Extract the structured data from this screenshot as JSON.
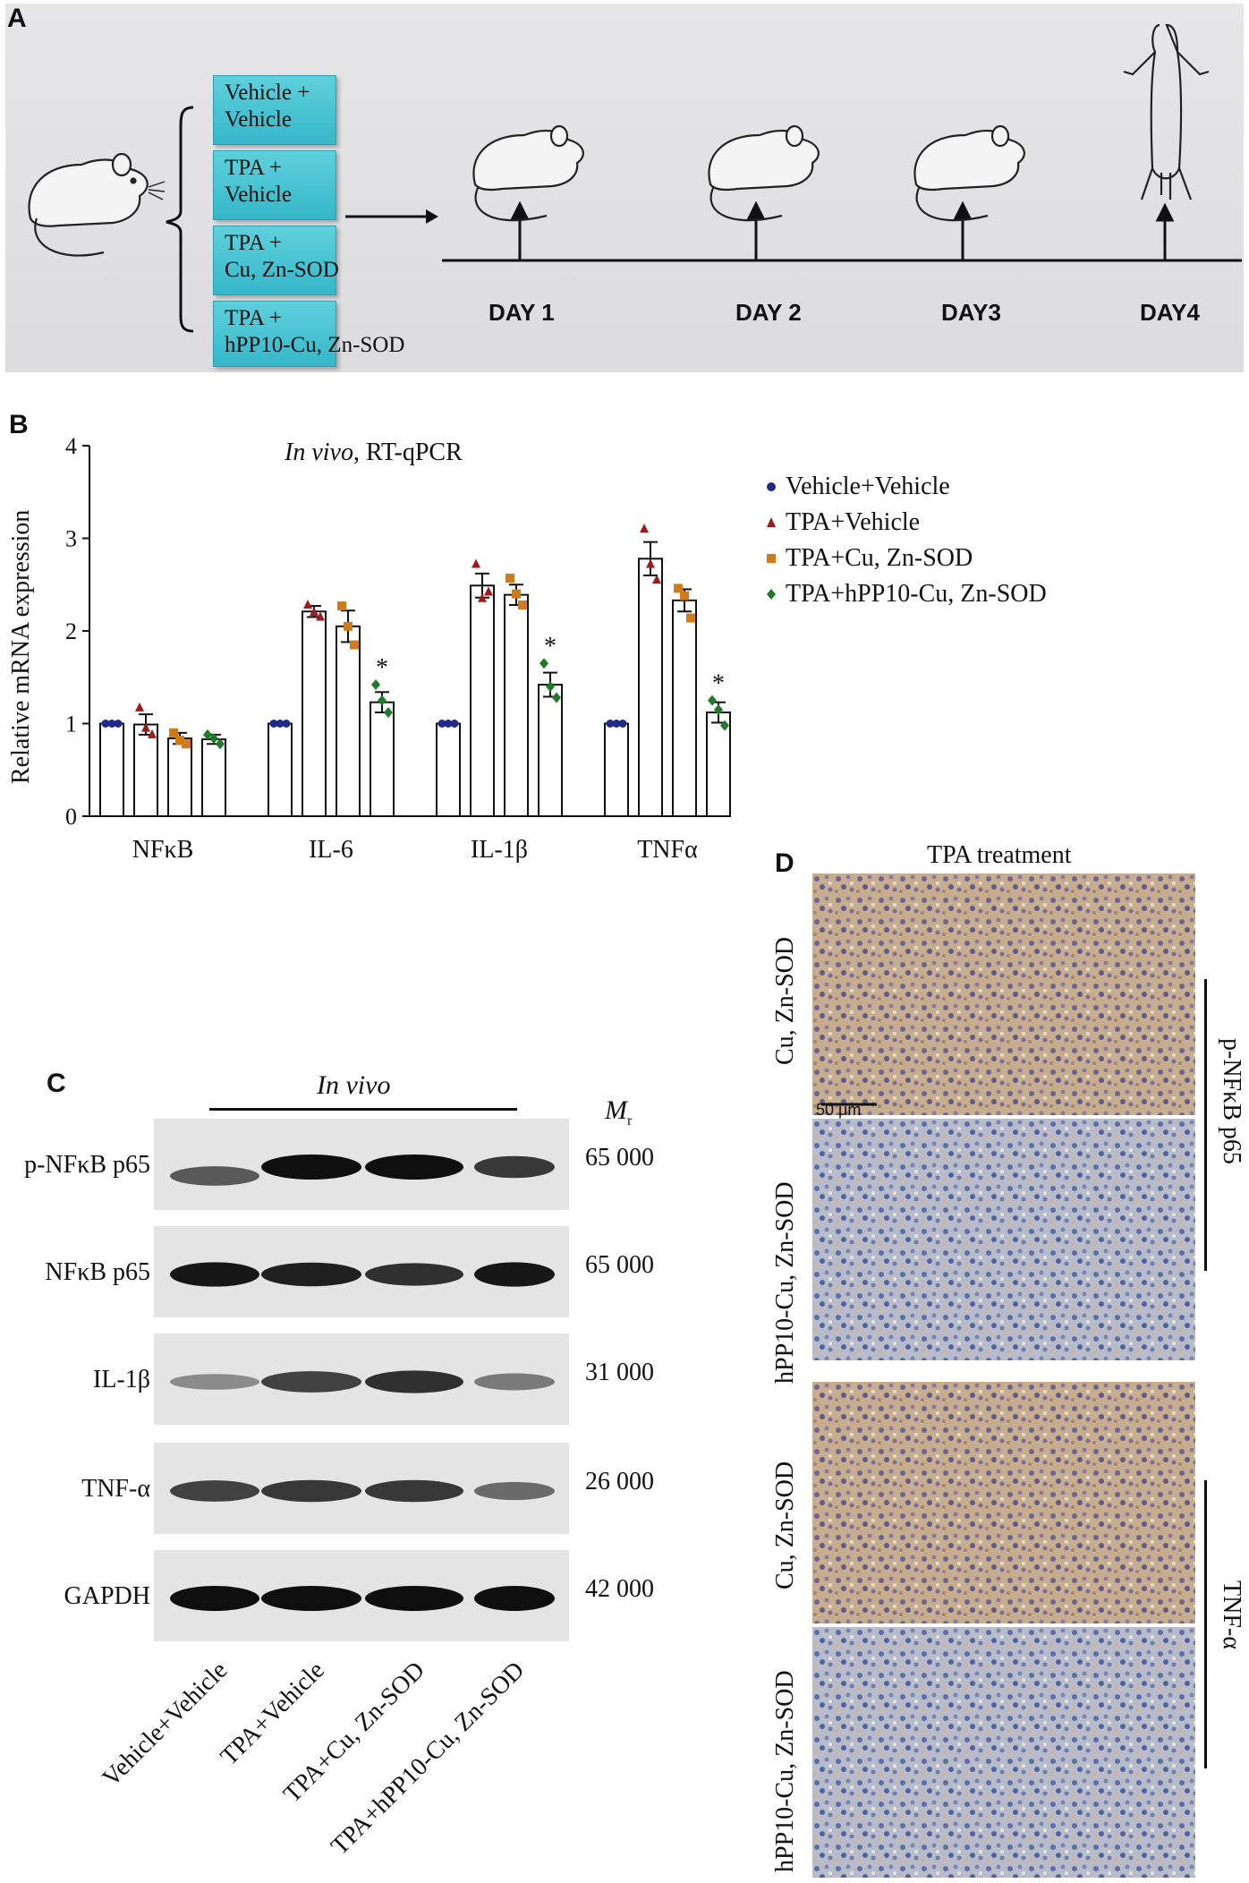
{
  "panel_a": {
    "letter": "A",
    "groups": [
      {
        "line1": "Vehicle +",
        "line2": "Vehicle"
      },
      {
        "line1": "TPA +",
        "line2": "Vehicle"
      },
      {
        "line1": "TPA +",
        "line2": "Cu, Zn-SOD"
      },
      {
        "line1": "TPA +",
        "line2": "hPP10-Cu, Zn-SOD"
      }
    ],
    "days": [
      "DAY 1",
      "DAY 2",
      "DAY3",
      "DAY4"
    ]
  },
  "panel_b": {
    "letter": "B",
    "title_italic": "In vivo",
    "title_rest": ", RT-qPCR",
    "ylabel": "Relative mRNA expression",
    "legend": [
      {
        "label": "Vehicle+Vehicle",
        "color": "#1f2a8a",
        "marker": "circle"
      },
      {
        "label": "TPA+Vehicle",
        "color": "#9b1b1b",
        "marker": "triangle"
      },
      {
        "label": "TPA+Cu, Zn-SOD",
        "color": "#d07a1a",
        "marker": "square"
      },
      {
        "label": "TPA+hPP10-Cu, Zn-SOD",
        "color": "#1f7a2a",
        "marker": "diamond"
      }
    ]
  },
  "chart_data": {
    "type": "bar",
    "title": "In vivo, RT-qPCR",
    "ylabel": "Relative mRNA expression",
    "xlabel": "",
    "ylim": [
      0,
      4
    ],
    "yticks": [
      "0",
      "1",
      "2",
      "3",
      "4"
    ],
    "categories": [
      "NFκB",
      "IL-6",
      "IL-1β",
      "TNFα"
    ],
    "series": [
      {
        "name": "Vehicle+Vehicle",
        "values": [
          1.0,
          1.0,
          1.0,
          1.0
        ],
        "errors": [
          0,
          0,
          0,
          0
        ],
        "points": [
          [
            1.0,
            1.0,
            1.0
          ],
          [
            1.0,
            1.0,
            1.0
          ],
          [
            1.0,
            1.0,
            1.0
          ],
          [
            1.0,
            1.0,
            1.0
          ]
        ]
      },
      {
        "name": "TPA+Vehicle",
        "values": [
          0.99,
          2.21,
          2.49,
          2.78
        ],
        "errors": [
          0.11,
          0.06,
          0.13,
          0.18
        ],
        "points": [
          [
            1.17,
            0.95,
            0.88
          ],
          [
            2.28,
            2.2,
            2.15
          ],
          [
            2.72,
            2.35,
            2.42
          ],
          [
            3.1,
            2.72,
            2.55
          ]
        ]
      },
      {
        "name": "TPA+Cu, Zn-SOD",
        "values": [
          0.84,
          2.05,
          2.39,
          2.33
        ],
        "errors": [
          0.06,
          0.17,
          0.11,
          0.12
        ],
        "points": [
          [
            0.9,
            0.82,
            0.78
          ],
          [
            2.27,
            2.05,
            1.85
          ],
          [
            2.57,
            2.4,
            2.28
          ],
          [
            2.46,
            2.38,
            2.14
          ]
        ]
      },
      {
        "name": "TPA+hPP10-Cu, Zn-SOD",
        "values": [
          0.83,
          1.23,
          1.42,
          1.12
        ],
        "errors": [
          0.05,
          0.11,
          0.13,
          0.11
        ],
        "points": [
          [
            0.88,
            0.84,
            0.78
          ],
          [
            1.42,
            1.25,
            1.12
          ],
          [
            1.65,
            1.4,
            1.28
          ],
          [
            1.25,
            1.15,
            0.98
          ]
        ]
      }
    ],
    "annotations": [
      {
        "category": "IL-6",
        "series": "TPA+hPP10-Cu, Zn-SOD",
        "text": "*"
      },
      {
        "category": "IL-1β",
        "series": "TPA+hPP10-Cu, Zn-SOD",
        "text": "*"
      },
      {
        "category": "TNFα",
        "series": "TPA+hPP10-Cu, Zn-SOD",
        "text": "*"
      }
    ],
    "legend_position": "top-right",
    "grid": false
  },
  "panel_c": {
    "letter": "C",
    "title": "In vivo",
    "mr_label": "M",
    "mr_sub": "r",
    "rows": [
      {
        "label": "p-NFκB p65",
        "mw": "65 000",
        "bands": [
          0.55,
          1.0,
          1.0,
          0.75
        ]
      },
      {
        "label": "NFκB p65",
        "mw": "65 000",
        "bands": [
          0.95,
          0.9,
          0.8,
          0.95
        ]
      },
      {
        "label": "IL-1β",
        "mw": "31 000",
        "bands": [
          0.25,
          0.7,
          0.8,
          0.35
        ]
      },
      {
        "label": "TNF-α",
        "mw": "26 000",
        "bands": [
          0.7,
          0.75,
          0.75,
          0.45
        ]
      },
      {
        "label": "GAPDH",
        "mw": "42 000",
        "bands": [
          1.0,
          1.0,
          1.0,
          1.0
        ]
      }
    ],
    "lanes": [
      "Vehicle+Vehicle",
      "TPA+Vehicle",
      "TPA+Cu, Zn-SOD",
      "TPA+hPP10-Cu, Zn-SOD"
    ]
  },
  "panel_d": {
    "letter": "D",
    "title": "TPA treatment",
    "scale_bar": "50 μm",
    "images": [
      {
        "label": "Cu, Zn-SOD",
        "tone": "brown"
      },
      {
        "label": "hPP10-Cu, Zn-SOD",
        "tone": "blue"
      },
      {
        "label": "Cu, Zn-SOD",
        "tone": "brown"
      },
      {
        "label": "hPP10-Cu, Zn-SOD",
        "tone": "blue"
      }
    ],
    "markers": [
      "p-NFκB p65",
      "TNF-α"
    ]
  }
}
